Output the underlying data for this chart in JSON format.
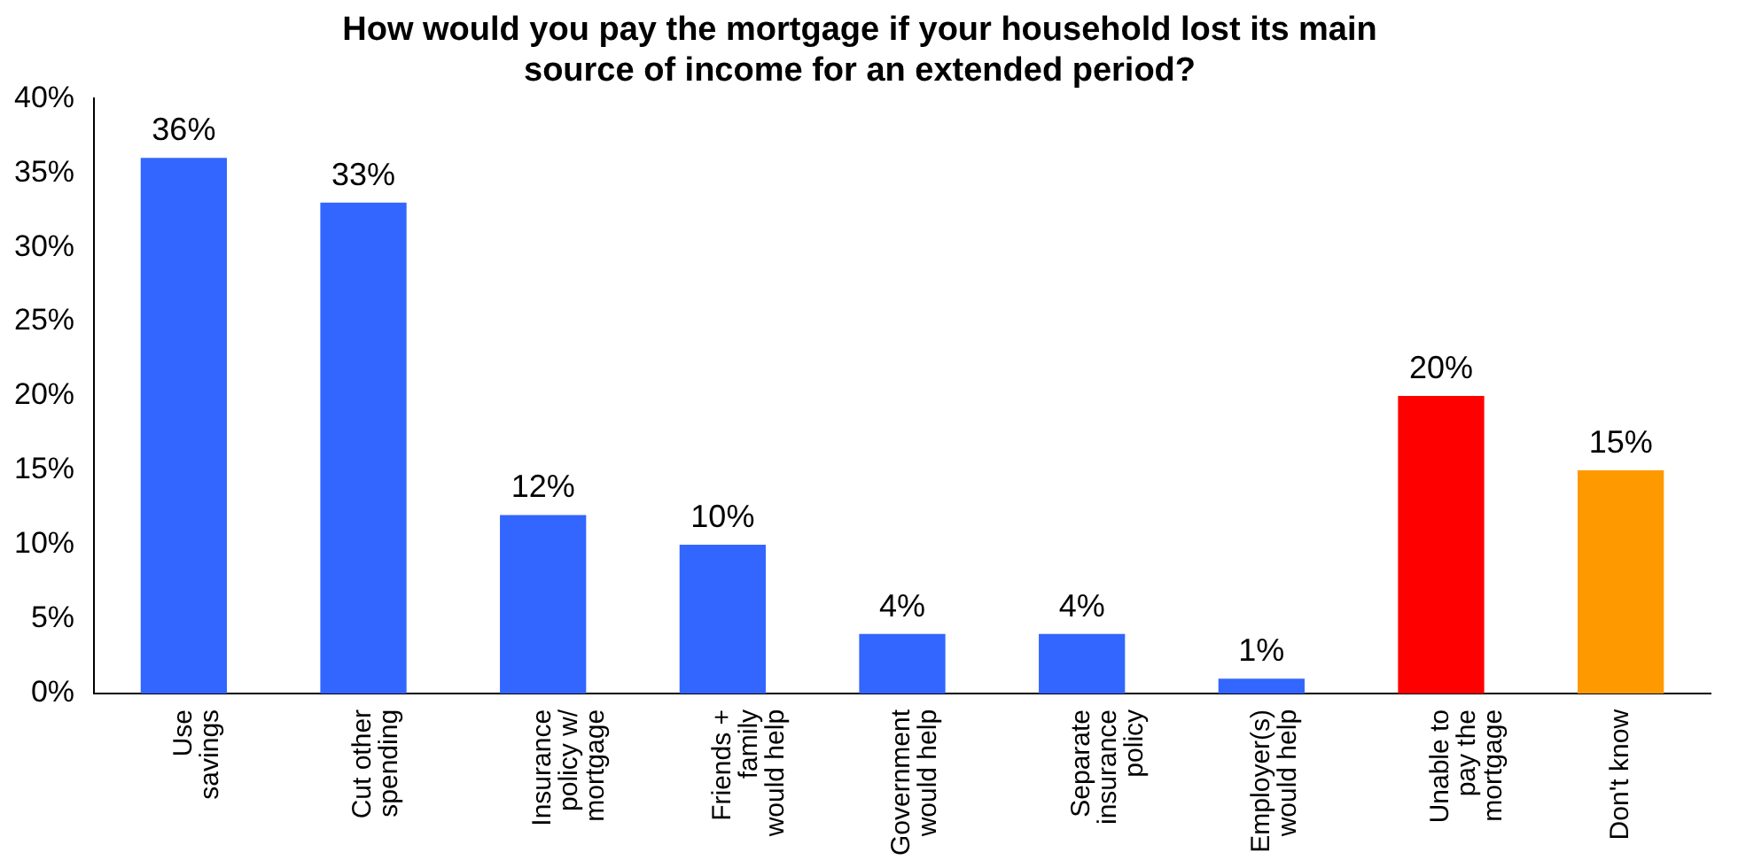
{
  "chart_data": {
    "type": "bar",
    "title": "How would you pay the mortgage if your household lost its main source of income for an extended period?",
    "categories": [
      "Use savings",
      "Cut other spending",
      "Insurance policy w/ mortgage",
      "Friends + family would help",
      "Government would help",
      "Separate insurance policy",
      "Employer(s) would help",
      "Unable to pay the mortgage",
      "Don't know"
    ],
    "values": [
      36,
      33,
      12,
      10,
      4,
      4,
      1,
      20,
      15
    ],
    "colors": [
      "#3366ff",
      "#3366ff",
      "#3366ff",
      "#3366ff",
      "#3366ff",
      "#3366ff",
      "#3366ff",
      "#ff0000",
      "#ff9900"
    ],
    "ylim": [
      0,
      40
    ],
    "yticks": [
      {
        "value": 0,
        "label": "0%"
      },
      {
        "value": 5,
        "label": "5%"
      },
      {
        "value": 10,
        "label": "10%"
      },
      {
        "value": 15,
        "label": "15%"
      },
      {
        "value": 20,
        "label": "20%"
      },
      {
        "value": 25,
        "label": "25%"
      },
      {
        "value": 30,
        "label": "30%"
      },
      {
        "value": 35,
        "label": "35%"
      },
      {
        "value": 40,
        "label": "40%"
      }
    ],
    "value_labels": [
      "36%",
      "33%",
      "12%",
      "10%",
      "4%",
      "4%",
      "1%",
      "20%",
      "15%"
    ],
    "grid": false,
    "legend": false
  }
}
